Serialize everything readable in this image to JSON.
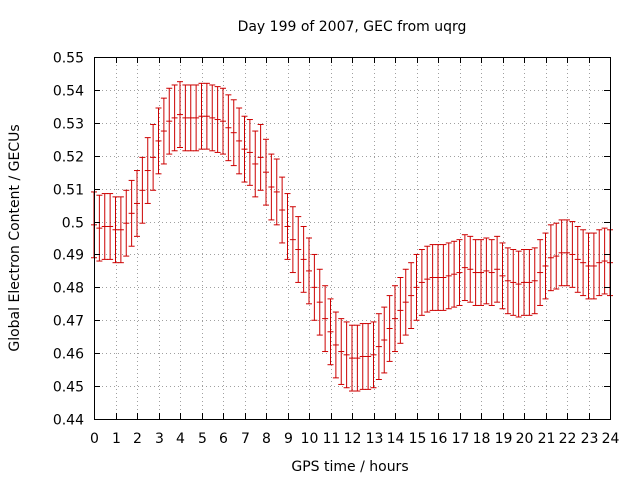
{
  "chart_data": {
    "type": "scatter",
    "title": "Day 199 of 2007, GEC from uqrg",
    "xlabel": "GPS time / hours",
    "ylabel": "Global Electron Content / GECUs",
    "xlim": [
      0,
      24
    ],
    "ylim": [
      0.44,
      0.55
    ],
    "x_ticks": [
      "0",
      "1",
      "2",
      "3",
      "4",
      "5",
      "6",
      "7",
      "8",
      "9",
      "10",
      "11",
      "12",
      "13",
      "14",
      "15",
      "16",
      "17",
      "18",
      "19",
      "20",
      "21",
      "22",
      "23",
      "24"
    ],
    "y_ticks": [
      "0.44",
      "0.45",
      "0.46",
      "0.47",
      "0.48",
      "0.49",
      "0.5",
      "0.51",
      "0.52",
      "0.53",
      "0.54",
      "0.55"
    ],
    "grid": true,
    "error": 0.01,
    "color": "#cc0000",
    "series": [
      {
        "x": [
          0,
          0.25,
          0.5,
          0.75,
          1,
          1.25,
          1.5,
          1.75,
          2,
          2.25,
          2.5,
          2.75,
          3,
          3.25,
          3.5,
          3.75,
          4,
          4.25,
          4.5,
          4.75,
          5,
          5.25,
          5.5,
          5.75,
          6,
          6.25,
          6.5,
          6.75,
          7,
          7.25,
          7.5,
          7.75,
          8,
          8.25,
          8.5,
          8.75,
          9,
          9.25,
          9.5,
          9.75,
          10,
          10.25,
          10.5,
          10.75,
          11,
          11.25,
          11.5,
          11.75,
          12,
          12.25,
          12.5,
          12.75,
          13,
          13.25,
          13.5,
          13.75,
          14,
          14.25,
          14.5,
          14.75,
          15,
          15.25,
          15.5,
          15.75,
          16,
          16.25,
          16.5,
          16.75,
          17,
          17.25,
          17.5,
          17.75,
          18,
          18.25,
          18.5,
          18.75,
          19,
          19.25,
          19.5,
          19.75,
          20,
          20.25,
          20.5,
          20.75,
          21,
          21.25,
          21.5,
          21.75,
          22,
          22.25,
          22.5,
          22.75,
          23,
          23.25,
          23.5,
          23.75,
          24
        ],
        "y": [
          0.499,
          0.498,
          0.4985,
          0.4985,
          0.4975,
          0.4975,
          0.4995,
          0.5025,
          0.5055,
          0.5095,
          0.5155,
          0.5195,
          0.5245,
          0.5275,
          0.5305,
          0.5315,
          0.5325,
          0.5315,
          0.5315,
          0.5315,
          0.532,
          0.532,
          0.5315,
          0.531,
          0.5305,
          0.5285,
          0.527,
          0.5245,
          0.522,
          0.521,
          0.5175,
          0.5195,
          0.515,
          0.5105,
          0.509,
          0.5035,
          0.4985,
          0.4945,
          0.4915,
          0.4885,
          0.485,
          0.48,
          0.4755,
          0.4705,
          0.4665,
          0.4625,
          0.4605,
          0.4595,
          0.4585,
          0.4585,
          0.459,
          0.459,
          0.4595,
          0.462,
          0.464,
          0.4675,
          0.4705,
          0.473,
          0.4755,
          0.4775,
          0.48,
          0.4815,
          0.4825,
          0.483,
          0.483,
          0.483,
          0.4835,
          0.484,
          0.4845,
          0.486,
          0.4855,
          0.4845,
          0.4845,
          0.485,
          0.4845,
          0.4855,
          0.4835,
          0.482,
          0.4815,
          0.481,
          0.4815,
          0.4815,
          0.482,
          0.4845,
          0.4865,
          0.489,
          0.4895,
          0.4905,
          0.4905,
          0.49,
          0.4885,
          0.4875,
          0.4865,
          0.4865,
          0.4875,
          0.488,
          0.4875
        ]
      }
    ]
  }
}
